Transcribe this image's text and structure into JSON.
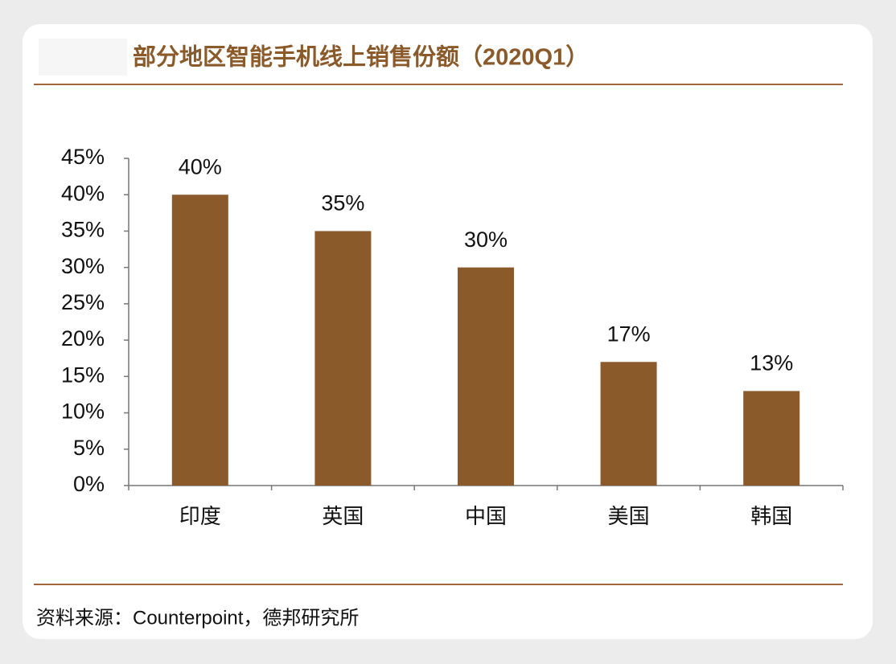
{
  "chart_data": {
    "type": "bar",
    "title": "部分地区智能手机线上销售份额（2020Q1）",
    "categories": [
      "印度",
      "英国",
      "中国",
      "美国",
      "韩国"
    ],
    "values": [
      40,
      35,
      30,
      17,
      13
    ],
    "value_labels": [
      "40%",
      "35%",
      "30%",
      "17%",
      "13%"
    ],
    "color": "#8b5a2b",
    "ylim": [
      0,
      45
    ],
    "yticks": [
      {
        "value": 0,
        "label": "0%"
      },
      {
        "value": 5,
        "label": "5%"
      },
      {
        "value": 10,
        "label": "10%"
      },
      {
        "value": 15,
        "label": "15%"
      },
      {
        "value": 20,
        "label": "20%"
      },
      {
        "value": 25,
        "label": "25%"
      },
      {
        "value": 30,
        "label": "30%"
      },
      {
        "value": 35,
        "label": "35%"
      },
      {
        "value": 40,
        "label": "40%"
      },
      {
        "value": 45,
        "label": "45%"
      }
    ],
    "grid": false,
    "source": "资料来源：Counterpoint，德邦研究所"
  }
}
